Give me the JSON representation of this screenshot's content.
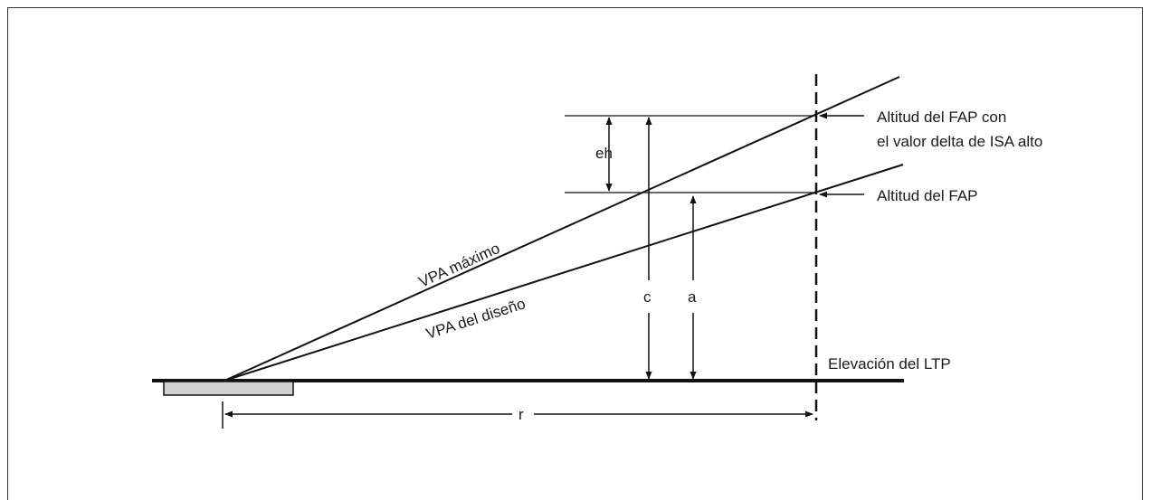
{
  "labels": {
    "fap_isa_line1": "Altitud del FAP con",
    "fap_isa_line2": "el valor delta de ISA alto",
    "fap": "Altitud del FAP",
    "ltp": "Elevación del LTP",
    "vpa_max": "VPA máximo",
    "vpa_design": "VPA del diseño",
    "eh": "eh",
    "c": "c",
    "a": "a",
    "r": "r"
  },
  "colors": {
    "line": "#111111",
    "threshold_fill": "#d0d0d0"
  }
}
